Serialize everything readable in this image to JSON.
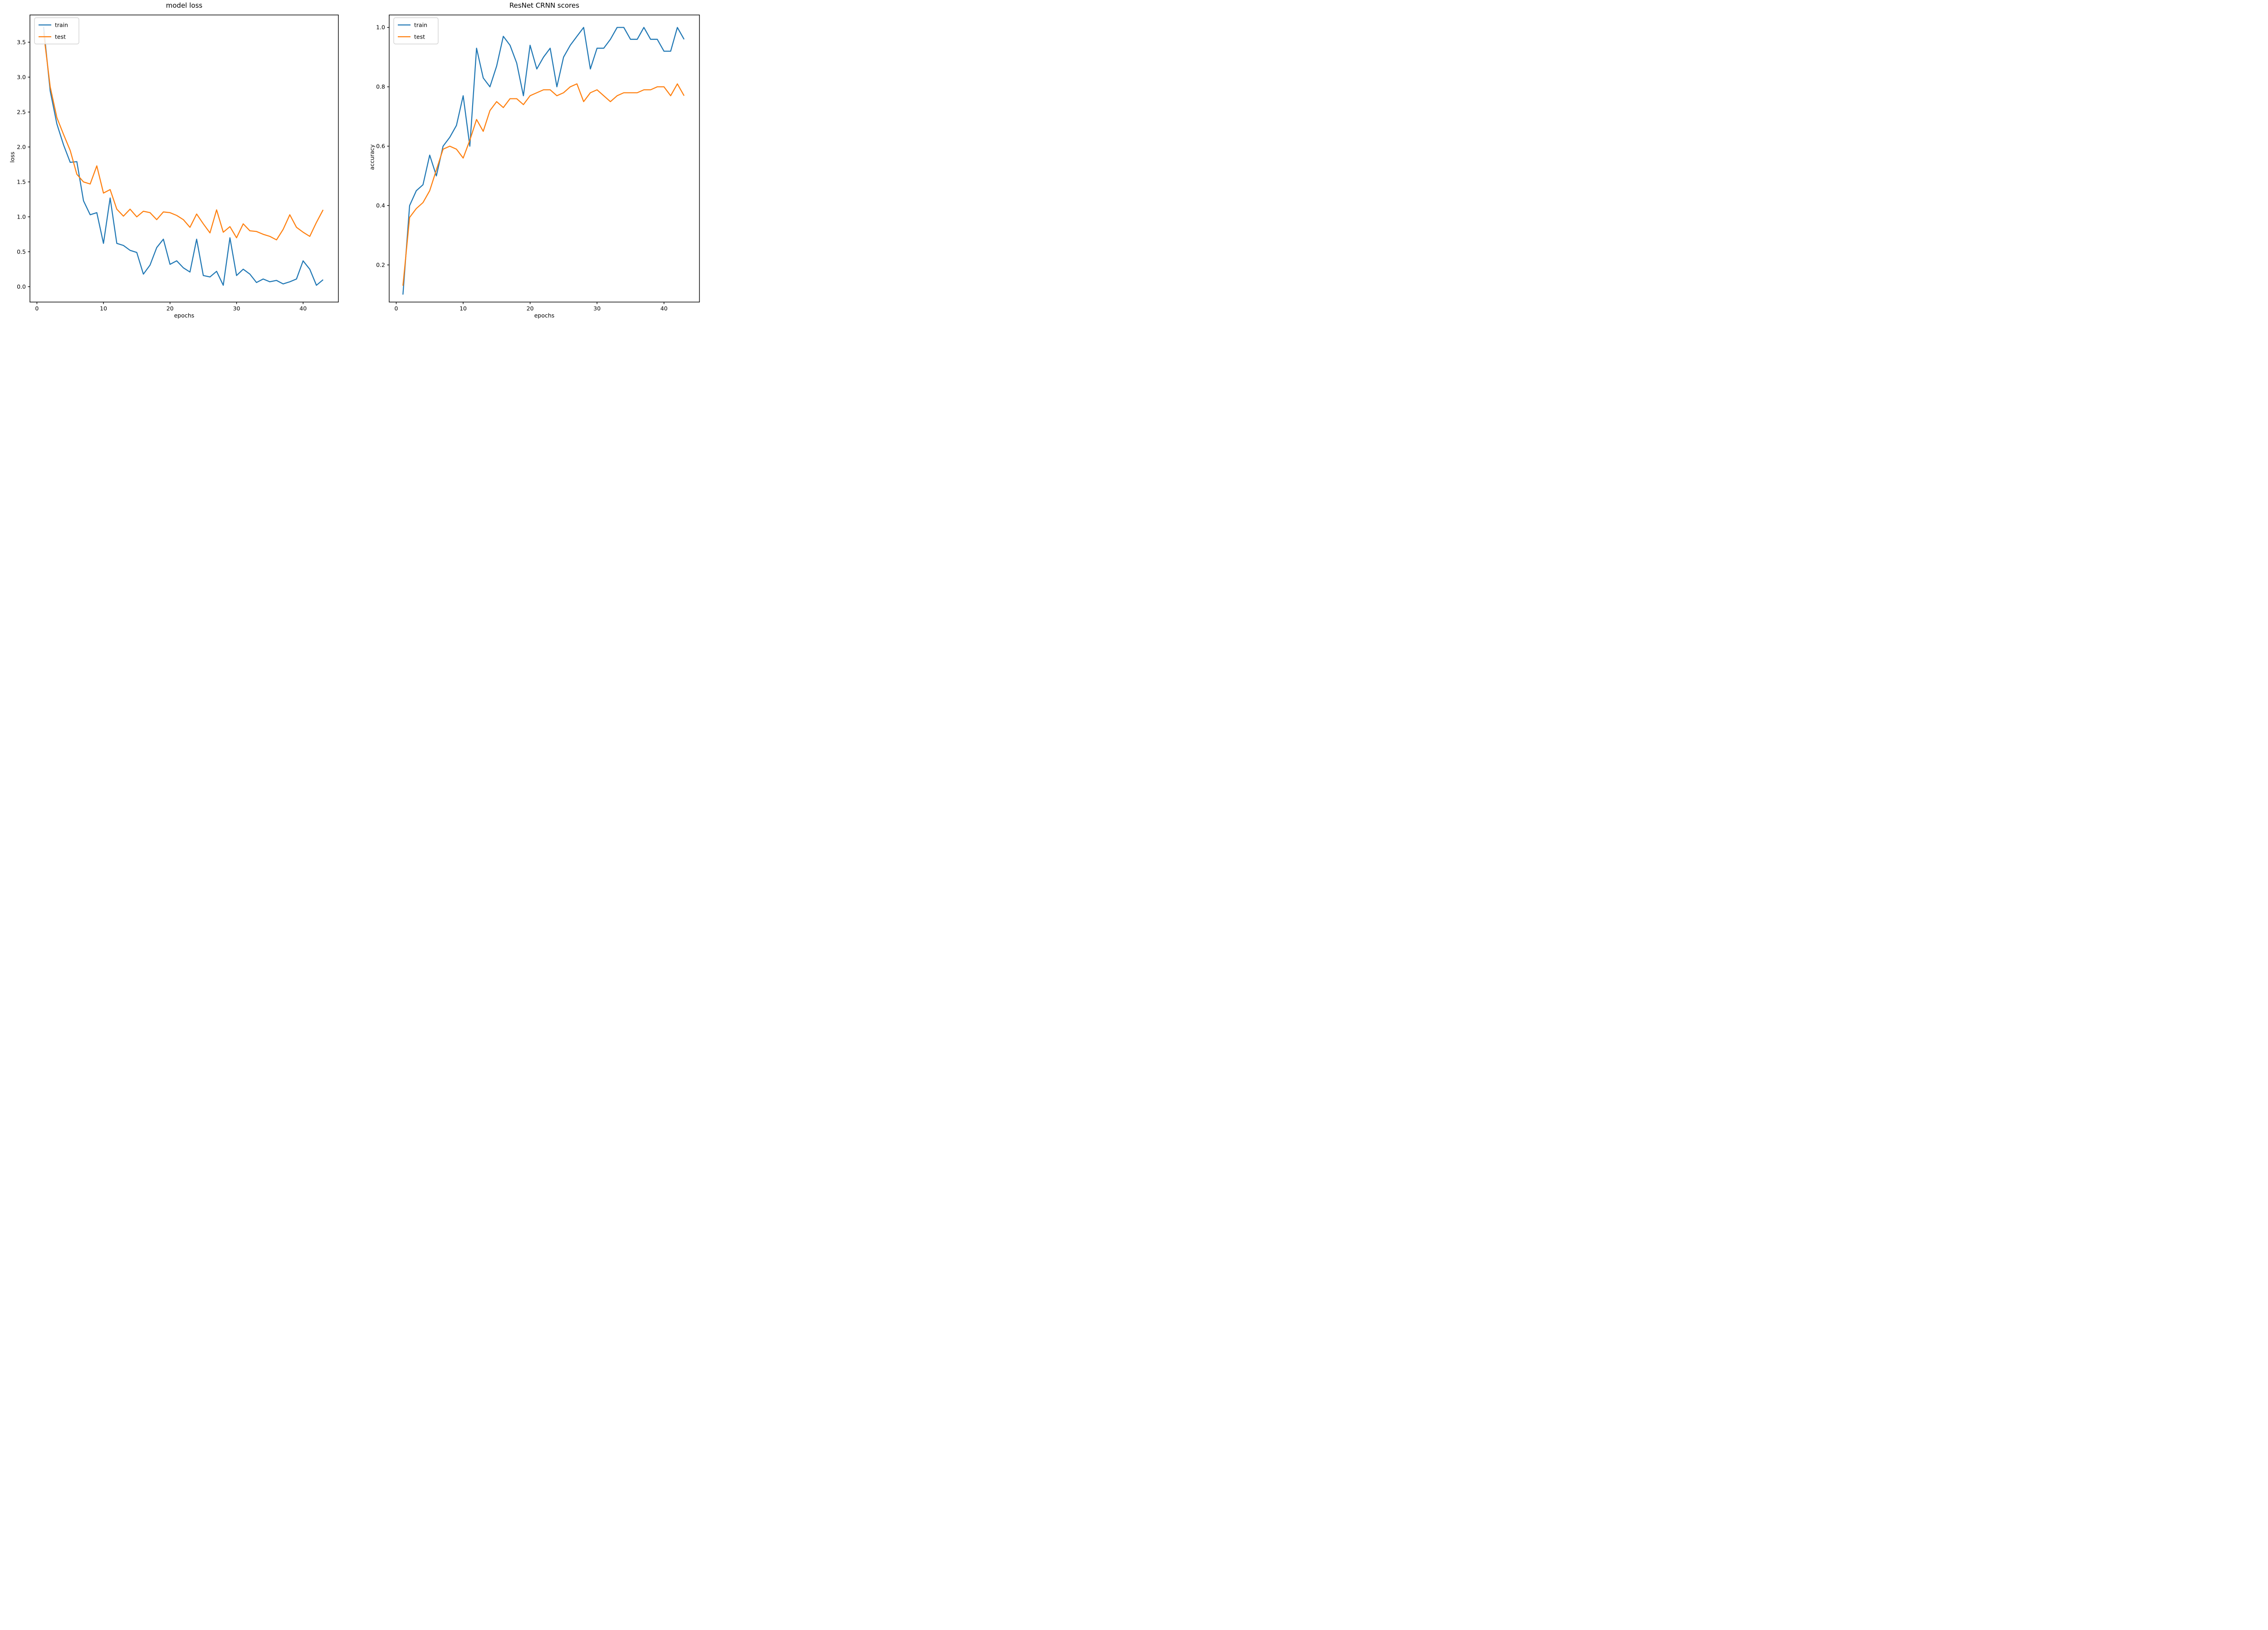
{
  "figure": {
    "background": "#ffffff"
  },
  "colors": {
    "train": "#1f77b4",
    "test": "#ff7f0e",
    "spine": "#000000",
    "text": "#000000",
    "legend_border": "#cccccc",
    "legend_fill": "#ffffff"
  },
  "legend": {
    "position": "upper left",
    "items": [
      {
        "label": "train",
        "color_key": "train"
      },
      {
        "label": "test",
        "color_key": "test"
      }
    ]
  },
  "chart_data": [
    {
      "type": "line",
      "title": "model loss",
      "xlabel": "epochs",
      "ylabel": "loss",
      "xlim": [
        -1.05,
        45.3
      ],
      "ylim": [
        -0.22,
        3.89
      ],
      "xticks": [
        0,
        10,
        20,
        30,
        40
      ],
      "yticks": [
        0.0,
        0.5,
        1.0,
        1.5,
        2.0,
        2.5,
        3.0,
        3.5
      ],
      "grid": false,
      "legend_position": "upper left",
      "x_start": 1,
      "x_step": 1,
      "series": [
        {
          "name": "train",
          "color_key": "train",
          "values": [
            3.72,
            2.8,
            2.33,
            2.03,
            1.78,
            1.79,
            1.23,
            1.03,
            1.06,
            0.62,
            1.27,
            0.62,
            0.59,
            0.52,
            0.49,
            0.18,
            0.31,
            0.56,
            0.68,
            0.32,
            0.37,
            0.27,
            0.21,
            0.68,
            0.16,
            0.14,
            0.22,
            0.02,
            0.7,
            0.16,
            0.25,
            0.18,
            0.06,
            0.11,
            0.07,
            0.09,
            0.04,
            0.07,
            0.11,
            0.37,
            0.25,
            0.02,
            0.1
          ]
        },
        {
          "name": "test",
          "color_key": "test",
          "values": [
            3.64,
            2.86,
            2.42,
            2.18,
            1.95,
            1.61,
            1.5,
            1.47,
            1.73,
            1.34,
            1.39,
            1.11,
            1.01,
            1.11,
            1.0,
            1.08,
            1.06,
            0.96,
            1.07,
            1.06,
            1.02,
            0.96,
            0.85,
            1.04,
            0.9,
            0.77,
            1.1,
            0.78,
            0.86,
            0.7,
            0.9,
            0.8,
            0.79,
            0.75,
            0.72,
            0.67,
            0.82,
            1.03,
            0.85,
            0.78,
            0.72,
            0.92,
            1.1
          ]
        }
      ]
    },
    {
      "type": "line",
      "title": "ResNet CRNN scores",
      "xlabel": "epochs",
      "ylabel": "accuracy",
      "xlim": [
        -1.05,
        45.3
      ],
      "ylim": [
        0.075,
        1.042
      ],
      "xticks": [
        0,
        10,
        20,
        30,
        40
      ],
      "yticks": [
        0.2,
        0.4,
        0.6,
        0.8,
        1.0
      ],
      "grid": false,
      "legend_position": "upper left",
      "x_start": 1,
      "x_step": 1,
      "series": [
        {
          "name": "train",
          "color_key": "train",
          "values": [
            0.1,
            0.4,
            0.45,
            0.47,
            0.57,
            0.5,
            0.6,
            0.63,
            0.67,
            0.77,
            0.6,
            0.93,
            0.83,
            0.8,
            0.87,
            0.97,
            0.94,
            0.88,
            0.77,
            0.94,
            0.86,
            0.9,
            0.93,
            0.8,
            0.9,
            0.94,
            0.97,
            1.0,
            0.86,
            0.93,
            0.93,
            0.96,
            1.0,
            1.0,
            0.96,
            0.96,
            1.0,
            0.96,
            0.96,
            0.92,
            0.92,
            1.0,
            0.96
          ]
        },
        {
          "name": "test",
          "color_key": "test",
          "values": [
            0.13,
            0.36,
            0.39,
            0.41,
            0.45,
            0.52,
            0.59,
            0.6,
            0.59,
            0.56,
            0.62,
            0.69,
            0.65,
            0.72,
            0.75,
            0.73,
            0.76,
            0.76,
            0.74,
            0.77,
            0.78,
            0.79,
            0.79,
            0.77,
            0.78,
            0.8,
            0.81,
            0.75,
            0.78,
            0.79,
            0.77,
            0.75,
            0.77,
            0.78,
            0.78,
            0.78,
            0.79,
            0.79,
            0.8,
            0.8,
            0.77,
            0.81,
            0.77
          ]
        }
      ]
    }
  ]
}
